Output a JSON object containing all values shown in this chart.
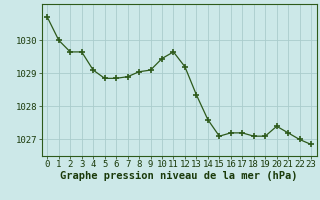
{
  "hours": [
    0,
    1,
    2,
    3,
    4,
    5,
    6,
    7,
    8,
    9,
    10,
    11,
    12,
    13,
    14,
    15,
    16,
    17,
    18,
    19,
    20,
    21,
    22,
    23
  ],
  "pressure": [
    1030.7,
    1030.0,
    1029.65,
    1029.65,
    1029.1,
    1028.85,
    1028.85,
    1028.9,
    1029.05,
    1029.1,
    1029.45,
    1029.65,
    1029.2,
    1028.35,
    1027.6,
    1027.1,
    1027.2,
    1027.2,
    1027.1,
    1027.1,
    1027.4,
    1027.2,
    1027.0,
    1026.85
  ],
  "line_color": "#2d5a1b",
  "marker_color": "#2d5a1b",
  "bg_color": "#cce8e8",
  "grid_color": "#aacccc",
  "ylabel_ticks": [
    1027,
    1028,
    1029,
    1030
  ],
  "xlabel": "Graphe pression niveau de la mer (hPa)",
  "xlim": [
    -0.5,
    23.5
  ],
  "ylim": [
    1026.5,
    1031.1
  ],
  "xlabel_fontsize": 7.5,
  "tick_fontsize": 6.5,
  "title_color": "#1a3a0a",
  "axis_color": "#2d5a1b"
}
